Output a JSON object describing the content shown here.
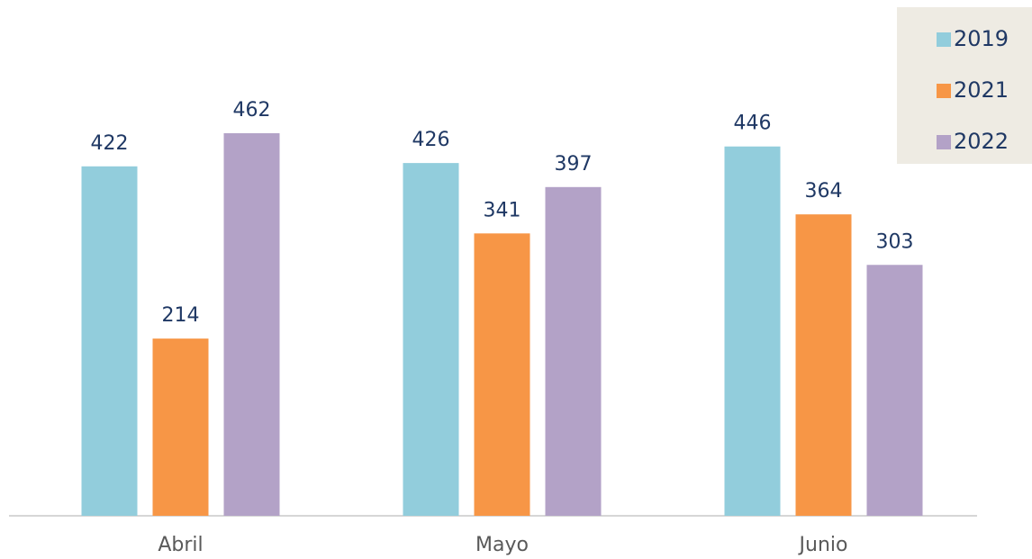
{
  "chart_data": {
    "type": "bar",
    "categories": [
      "Abril",
      "Mayo",
      "Junio"
    ],
    "series": [
      {
        "name": "2019",
        "color": "#92cddc",
        "values": [
          422,
          426,
          446
        ]
      },
      {
        "name": "2021",
        "color": "#f79646",
        "values": [
          214,
          341,
          364
        ]
      },
      {
        "name": "2022",
        "color": "#b3a2c7",
        "values": [
          462,
          397,
          303
        ]
      }
    ],
    "legend": "top-right"
  }
}
